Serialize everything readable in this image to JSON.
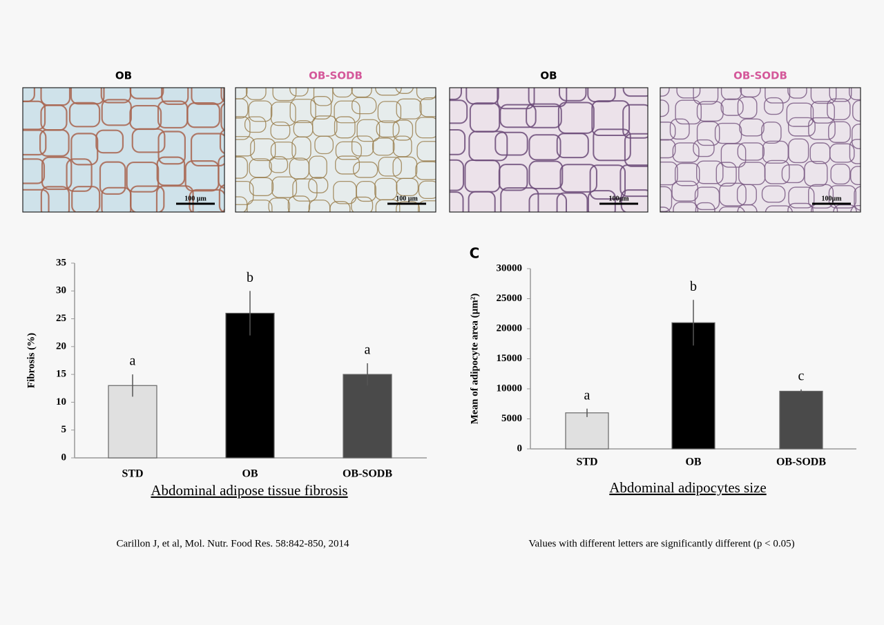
{
  "panels": [
    {
      "label": "OB",
      "color": "#000000",
      "scale": "100 µm"
    },
    {
      "label": "OB-SODB",
      "color": "#d4589a",
      "scale": "100 µm"
    },
    {
      "label": "OB",
      "color": "#000000",
      "scale": "100µm"
    },
    {
      "label": "OB-SODB",
      "color": "#d4589a",
      "scale": "100µm"
    }
  ],
  "chart_data": [
    {
      "type": "bar",
      "ylabel": "Fibrosis (%)",
      "caption": "Abdominal adipose tissue  fibrosis",
      "categories": [
        "STD",
        "OB",
        "OB-SODB"
      ],
      "values": [
        13,
        26,
        15
      ],
      "errors": [
        2,
        4,
        2
      ],
      "letters": [
        "a",
        "b",
        "a"
      ],
      "colors": [
        "#e0e0e0",
        "#000000",
        "#4a4a4a"
      ],
      "ylim": [
        0,
        35
      ],
      "yticks": [
        0,
        5,
        10,
        15,
        20,
        25,
        30,
        35
      ]
    },
    {
      "type": "bar",
      "panel_label": "C",
      "ylabel": "Mean of adipocyte area (µm²)",
      "caption": "Abdominal adipocytes size",
      "categories": [
        "STD",
        "OB",
        "OB-SODB"
      ],
      "values": [
        6000,
        21000,
        9600
      ],
      "errors": [
        700,
        3800,
        300
      ],
      "letters": [
        "a",
        "b",
        "c"
      ],
      "colors": [
        "#e0e0e0",
        "#000000",
        "#4a4a4a"
      ],
      "ylim": [
        0,
        30000
      ],
      "yticks": [
        0,
        5000,
        10000,
        15000,
        20000,
        25000,
        30000
      ]
    }
  ],
  "citation": "Carillon J, et al, Mol. Nutr. Food Res. 58:842-850, 2014",
  "note": "Values with different letters are significantly different (p < 0.05)"
}
